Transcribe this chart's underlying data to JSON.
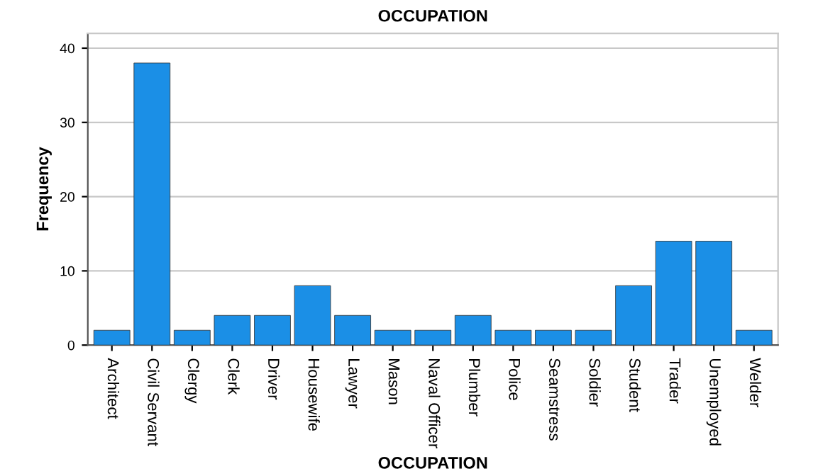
{
  "chart_data": {
    "type": "bar",
    "title": "OCCUPATION",
    "xlabel": "OCCUPATION",
    "ylabel": "Frequency",
    "categories": [
      "Architect",
      "Civil Servant",
      "Clergy",
      "Clerk",
      "Driver",
      "Housewife",
      "Lawyer",
      "Mason",
      "Naval Officer",
      "Plumber",
      "Police",
      "Seamstress",
      "Soldier",
      "Student",
      "Trader",
      "Unemployed",
      "Welder"
    ],
    "values": [
      2,
      38,
      2,
      4,
      4,
      8,
      4,
      2,
      2,
      4,
      2,
      2,
      2,
      8,
      14,
      14,
      2
    ],
    "color": "#1b8fe6",
    "ylim": [
      0,
      42
    ],
    "yticks": [
      0,
      10,
      20,
      30,
      40
    ],
    "grid": "y"
  }
}
